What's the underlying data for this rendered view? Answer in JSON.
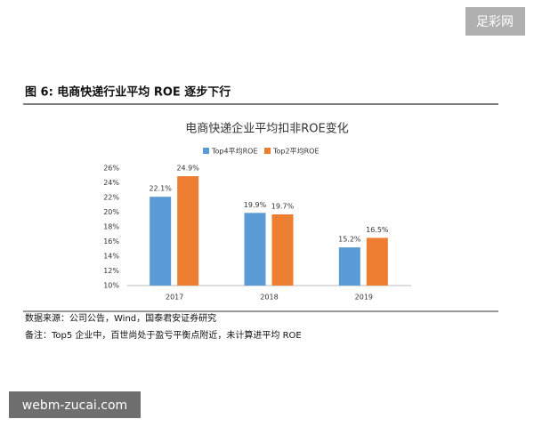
{
  "watermark_top": "足彩网",
  "figure_label": "图 6: 电商快递行业平均 ROE 逐步下行",
  "chart_data": {
    "type": "bar",
    "title": "电商快递企业平均扣非ROE变化",
    "categories": [
      "2017",
      "2018",
      "2019"
    ],
    "series": [
      {
        "name": "Top4平均ROE",
        "color": "#5b9bd5",
        "values": [
          22.1,
          19.9,
          15.2
        ],
        "value_labels": [
          "22.1%",
          "19.9%",
          "15.2%"
        ]
      },
      {
        "name": "Top2平均ROE",
        "color": "#ed7d31",
        "values": [
          24.9,
          19.7,
          16.5
        ],
        "value_labels": [
          "24.9%",
          "19.7%",
          "16.5%"
        ]
      }
    ],
    "ylim": [
      10,
      26
    ],
    "yticks": [
      {
        "value": 10,
        "label": "10%"
      },
      {
        "value": 12,
        "label": "12%"
      },
      {
        "value": 14,
        "label": "14%"
      },
      {
        "value": 16,
        "label": "16%"
      },
      {
        "value": 18,
        "label": "18%"
      },
      {
        "value": 20,
        "label": "20%"
      },
      {
        "value": 22,
        "label": "22%"
      },
      {
        "value": 24,
        "label": "24%"
      },
      {
        "value": 26,
        "label": "26%"
      }
    ],
    "grid": false,
    "legend": "top"
  },
  "source": "数据来源：公司公告，Wind，国泰君安证券研究",
  "note": "备注：Top5 企业中，百世尚处于盈亏平衡点附近，未计算进平均 ROE",
  "watermark_bottom": "webm-zucai.com"
}
